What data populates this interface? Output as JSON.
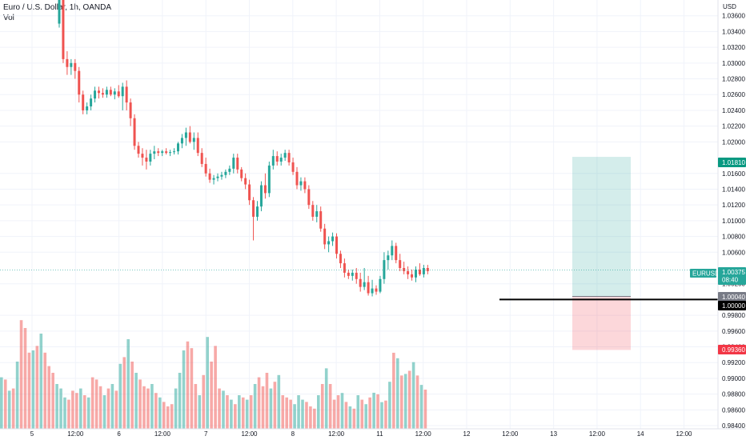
{
  "chart_data": {
    "type": "candlestick",
    "title": "Euro / U.S. Dollar, 1h, OANDA",
    "volume_label": "Vol",
    "currency_label": "USD",
    "y_ticks": [
      "1.03600",
      "1.03400",
      "1.03200",
      "1.03000",
      "1.02800",
      "1.02600",
      "1.02400",
      "1.02200",
      "1.02000",
      "1.01600",
      "1.01400",
      "1.01200",
      "1.01000",
      "1.00800",
      "1.00600",
      "1.00200",
      "0.99800",
      "0.99600",
      "0.99400",
      "0.99200",
      "0.99000",
      "0.98800",
      "0.98600",
      "0.98400"
    ],
    "x_ticks": [
      "5",
      "12:00",
      "6",
      "12:00",
      "7",
      "12:00",
      "8",
      "12:00",
      "11",
      "12:00",
      "12",
      "12:00",
      "13",
      "12:00",
      "14",
      "12:00"
    ],
    "ylim": [
      0.9836,
      1.038
    ],
    "colors": {
      "up": "#26a69a",
      "down": "#ef5350",
      "tp": "#26a69a",
      "sl": "#f23645"
    },
    "symbol_badge": "EURUSD",
    "last_price": "1.00375",
    "countdown": "08:40",
    "markers": {
      "take_profit": "1.01810",
      "entry": "1.00040",
      "level": "1.00000",
      "stop_loss": "0.99360"
    },
    "candles": [
      [
        1.035,
        1.039,
        1.0345,
        1.038
      ],
      [
        1.038,
        1.0385,
        1.03,
        1.0305
      ],
      [
        1.0305,
        1.0315,
        1.0285,
        1.0295
      ],
      [
        1.0295,
        1.0305,
        1.0285,
        1.03
      ],
      [
        1.03,
        1.0305,
        1.028,
        1.029
      ],
      [
        1.029,
        1.0295,
        1.025,
        1.026
      ],
      [
        1.026,
        1.0265,
        1.0235,
        1.024
      ],
      [
        1.024,
        1.025,
        1.0235,
        1.0245
      ],
      [
        1.0245,
        1.026,
        1.024,
        1.0255
      ],
      [
        1.0255,
        1.027,
        1.025,
        1.0265
      ],
      [
        1.0265,
        1.027,
        1.0255,
        1.0262
      ],
      [
        1.0262,
        1.0268,
        1.0256,
        1.026
      ],
      [
        1.026,
        1.027,
        1.0256,
        1.0266
      ],
      [
        1.0266,
        1.027,
        1.0258,
        1.026
      ],
      [
        1.026,
        1.0268,
        1.0254,
        1.0264
      ],
      [
        1.0264,
        1.0272,
        1.0256,
        1.0258
      ],
      [
        1.0258,
        1.0275,
        1.024,
        1.027
      ],
      [
        1.027,
        1.0278,
        1.024,
        1.025
      ],
      [
        1.025,
        1.0255,
        1.022,
        1.023
      ],
      [
        1.023,
        1.0235,
        1.019,
        1.0195
      ],
      [
        1.0195,
        1.02,
        1.018,
        1.0185
      ],
      [
        1.0185,
        1.0192,
        1.017,
        1.018
      ],
      [
        1.018,
        1.019,
        1.0165,
        1.0175
      ],
      [
        1.0175,
        1.019,
        1.017,
        1.0185
      ],
      [
        1.0185,
        1.0195,
        1.0178,
        1.0188
      ],
      [
        1.0188,
        1.0192,
        1.0182,
        1.0186
      ],
      [
        1.0186,
        1.019,
        1.0182,
        1.0188
      ],
      [
        1.0188,
        1.0192,
        1.0184,
        1.0186
      ],
      [
        1.0186,
        1.019,
        1.0182,
        1.0187
      ],
      [
        1.0187,
        1.0192,
        1.0184,
        1.0188
      ],
      [
        1.0188,
        1.02,
        1.0184,
        1.0198
      ],
      [
        1.0198,
        1.021,
        1.0192,
        1.0205
      ],
      [
        1.0205,
        1.0218,
        1.0195,
        1.0212
      ],
      [
        1.0212,
        1.022,
        1.0198,
        1.02
      ],
      [
        1.02,
        1.0212,
        1.019,
        1.0205
      ],
      [
        1.0205,
        1.0212,
        1.0182,
        1.0186
      ],
      [
        1.0186,
        1.0192,
        1.0168,
        1.0172
      ],
      [
        1.0172,
        1.018,
        1.0156,
        1.016
      ],
      [
        1.016,
        1.0166,
        1.0148,
        1.0152
      ],
      [
        1.0152,
        1.0158,
        1.0146,
        1.0154
      ],
      [
        1.0154,
        1.016,
        1.015,
        1.0156
      ],
      [
        1.0156,
        1.0162,
        1.0152,
        1.0158
      ],
      [
        1.0158,
        1.0165,
        1.0154,
        1.0162
      ],
      [
        1.0162,
        1.017,
        1.0158,
        1.0166
      ],
      [
        1.0166,
        1.0185,
        1.016,
        1.018
      ],
      [
        1.018,
        1.0185,
        1.016,
        1.0165
      ],
      [
        1.0165,
        1.0168,
        1.015,
        1.0154
      ],
      [
        1.0154,
        1.016,
        1.014,
        1.0146
      ],
      [
        1.0146,
        1.0152,
        1.012,
        1.0126
      ],
      [
        1.0126,
        1.013,
        1.0075,
        1.0105
      ],
      [
        1.0105,
        1.0125,
        1.01,
        1.0118
      ],
      [
        1.0118,
        1.015,
        1.0112,
        1.0145
      ],
      [
        1.0145,
        1.016,
        1.0128,
        1.0135
      ],
      [
        1.0135,
        1.0175,
        1.013,
        1.017
      ],
      [
        1.017,
        1.019,
        1.0165,
        1.0182
      ],
      [
        1.0182,
        1.0188,
        1.017,
        1.0175
      ],
      [
        1.0175,
        1.0185,
        1.017,
        1.018
      ],
      [
        1.018,
        1.019,
        1.0176,
        1.0186
      ],
      [
        1.0186,
        1.019,
        1.017,
        1.0174
      ],
      [
        1.0174,
        1.018,
        1.0158,
        1.0162
      ],
      [
        1.0162,
        1.0168,
        1.014,
        1.0145
      ],
      [
        1.0145,
        1.0155,
        1.0138,
        1.015
      ],
      [
        1.015,
        1.0155,
        1.0135,
        1.014
      ],
      [
        1.014,
        1.0145,
        1.0115,
        1.012
      ],
      [
        1.012,
        1.0125,
        1.01,
        1.0105
      ],
      [
        1.0105,
        1.012,
        1.0098,
        1.0112
      ],
      [
        1.0112,
        1.0118,
        1.0086,
        1.009
      ],
      [
        1.009,
        1.0096,
        1.0064,
        1.007
      ],
      [
        1.007,
        1.008,
        1.006,
        1.0074
      ],
      [
        1.0074,
        1.0085,
        1.0068,
        1.008
      ],
      [
        1.008,
        1.0084,
        1.0052,
        1.0058
      ],
      [
        1.0058,
        1.0062,
        1.004,
        1.0046
      ],
      [
        1.0046,
        1.0052,
        1.0028,
        1.0034
      ],
      [
        1.0034,
        1.0038,
        1.0026,
        1.003
      ],
      [
        1.003,
        1.0038,
        1.0024,
        1.0034
      ],
      [
        1.0034,
        1.004,
        1.002,
        1.0026
      ],
      [
        1.0026,
        1.0034,
        1.001,
        1.0016
      ],
      [
        1.0016,
        1.004,
        1.0012,
        1.0022
      ],
      [
        1.0022,
        1.003,
        1.0005,
        1.0008
      ],
      [
        1.0008,
        1.0025,
        1.0004,
        1.0014
      ],
      [
        1.0014,
        1.0018,
        1.0006,
        1.001
      ],
      [
        1.001,
        1.003,
        1.0008,
        1.0026
      ],
      [
        1.0026,
        1.006,
        1.002,
        1.005
      ],
      [
        1.005,
        1.0062,
        1.0038,
        1.0056
      ],
      [
        1.0056,
        1.0075,
        1.005,
        1.0068
      ],
      [
        1.0068,
        1.0072,
        1.0046,
        1.005
      ],
      [
        1.005,
        1.0058,
        1.0036,
        1.004
      ],
      [
        1.004,
        1.0048,
        1.0032,
        1.0036
      ],
      [
        1.0036,
        1.0042,
        1.0026,
        1.0032
      ],
      [
        1.0032,
        1.0038,
        1.0024,
        1.0028
      ],
      [
        1.0028,
        1.0042,
        1.0022,
        1.0038
      ],
      [
        1.0038,
        1.0046,
        1.003,
        1.0032
      ],
      [
        1.0032,
        1.0044,
        1.0028,
        1.004
      ],
      [
        1.004,
        1.0044,
        1.0032,
        1.0036
      ]
    ],
    "volumes": [
      46,
      44,
      34,
      36,
      60,
      97,
      90,
      68,
      70,
      74,
      85,
      68,
      56,
      50,
      40,
      36,
      28,
      26,
      34,
      32,
      36,
      30,
      28,
      46,
      44,
      38,
      30,
      36,
      40,
      34,
      58,
      64,
      80,
      60,
      50,
      44,
      38,
      36,
      40,
      32,
      28,
      24,
      20,
      22,
      36,
      50,
      70,
      78,
      72,
      40,
      30,
      48,
      82,
      60,
      74,
      36,
      34,
      30,
      26,
      22,
      30,
      28,
      26,
      30,
      40,
      46,
      38,
      50,
      36,
      42,
      48,
      30,
      28,
      26,
      22,
      30,
      26,
      24,
      20,
      18,
      30,
      40,
      54,
      40,
      26,
      30,
      32,
      24,
      20,
      18,
      30,
      26,
      22,
      28
    ]
  }
}
